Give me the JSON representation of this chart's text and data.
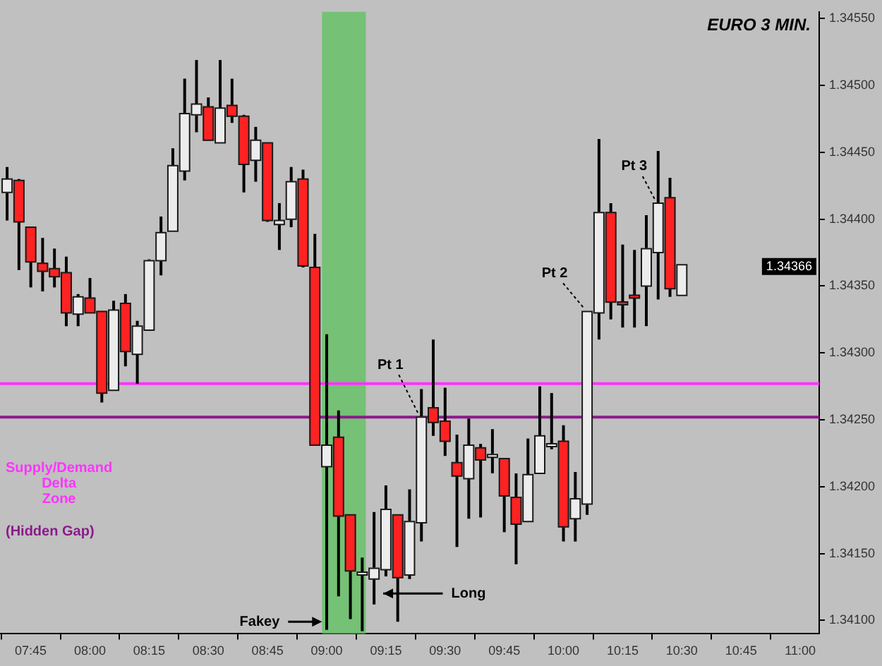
{
  "chart_data": {
    "type": "candlestick",
    "title": "EURO 3 MIN.",
    "x": [
      7.65,
      7.7,
      7.75,
      7.8,
      7.85,
      7.9,
      7.95,
      8.0,
      8.05,
      8.1,
      8.15,
      8.2,
      8.25,
      8.3,
      8.35,
      8.4,
      8.45,
      8.5,
      8.55,
      8.6,
      8.65,
      8.7,
      8.75,
      8.8,
      8.85,
      8.9,
      8.95,
      9.0,
      9.05,
      9.1,
      9.15,
      9.2,
      9.25,
      9.3,
      9.35,
      9.4,
      9.45,
      9.5,
      9.55,
      9.6,
      9.65,
      9.7,
      9.75,
      9.8,
      9.85,
      9.9,
      9.95,
      10.0,
      10.05,
      10.1,
      10.15,
      10.2,
      10.25,
      10.3,
      10.35,
      10.4,
      10.45,
      10.5
    ],
    "ohlc": [
      [
        1.3442,
        1.34439,
        1.34399,
        1.3443
      ],
      [
        1.34429,
        1.3443,
        1.34362,
        1.34398
      ],
      [
        1.34394,
        1.34394,
        1.34349,
        1.34368
      ],
      [
        1.34367,
        1.34386,
        1.34346,
        1.34361
      ],
      [
        1.34363,
        1.34378,
        1.34349,
        1.34357
      ],
      [
        1.3436,
        1.34372,
        1.3432,
        1.3433
      ],
      [
        1.34329,
        1.34344,
        1.3432,
        1.34342
      ],
      [
        1.34341,
        1.34356,
        1.3433,
        1.3433
      ],
      [
        1.34331,
        1.34331,
        1.34263,
        1.3427
      ],
      [
        1.34272,
        1.34339,
        1.34272,
        1.34332
      ],
      [
        1.34337,
        1.34344,
        1.3429,
        1.34301
      ],
      [
        1.34299,
        1.34324,
        1.34277,
        1.3432
      ],
      [
        1.34317,
        1.3437,
        1.34317,
        1.34369
      ],
      [
        1.34369,
        1.34402,
        1.34358,
        1.3439
      ],
      [
        1.34391,
        1.34453,
        1.34391,
        1.3444
      ],
      [
        1.34436,
        1.34505,
        1.34429,
        1.34479
      ],
      [
        1.34478,
        1.34519,
        1.34465,
        1.34486
      ],
      [
        1.34484,
        1.34491,
        1.34459,
        1.34459
      ],
      [
        1.34457,
        1.34519,
        1.34457,
        1.34483
      ],
      [
        1.34485,
        1.34505,
        1.34472,
        1.34477
      ],
      [
        1.34477,
        1.34478,
        1.3442,
        1.34441
      ],
      [
        1.34444,
        1.34469,
        1.34428,
        1.34459
      ],
      [
        1.34457,
        1.34457,
        1.34398,
        1.34399
      ],
      [
        1.34396,
        1.34412,
        1.34377,
        1.34399
      ],
      [
        1.344,
        1.34439,
        1.34394,
        1.34428
      ],
      [
        1.3443,
        1.34437,
        1.34364,
        1.34365
      ],
      [
        1.34364,
        1.34389,
        1.34231,
        1.34231
      ],
      [
        1.34215,
        1.34314,
        1.34093,
        1.34231
      ],
      [
        1.34237,
        1.34257,
        1.34118,
        1.34178
      ],
      [
        1.34179,
        1.34179,
        1.34101,
        1.34137
      ],
      [
        1.34134,
        1.34147,
        1.34092,
        1.34135
      ],
      [
        1.34131,
        1.34181,
        1.34112,
        1.34139
      ],
      [
        1.34138,
        1.34201,
        1.34133,
        1.34183
      ],
      [
        1.34179,
        1.34179,
        1.34099,
        1.34132
      ],
      [
        1.34134,
        1.34198,
        1.34131,
        1.34174
      ],
      [
        1.34173,
        1.34273,
        1.34159,
        1.34252
      ],
      [
        1.34259,
        1.3431,
        1.34238,
        1.34248
      ],
      [
        1.34249,
        1.34274,
        1.34223,
        1.34234
      ],
      [
        1.34218,
        1.34239,
        1.34155,
        1.34208
      ],
      [
        1.34206,
        1.34251,
        1.34176,
        1.34231
      ],
      [
        1.34229,
        1.34232,
        1.34177,
        1.3422
      ],
      [
        1.34222,
        1.34243,
        1.3421,
        1.34223
      ],
      [
        1.34221,
        1.34221,
        1.34166,
        1.34193
      ],
      [
        1.34192,
        1.3421,
        1.34142,
        1.34172
      ],
      [
        1.34174,
        1.34236,
        1.34174,
        1.34209
      ],
      [
        1.3421,
        1.34275,
        1.3421,
        1.34238
      ],
      [
        1.3423,
        1.3427,
        1.34228,
        1.34231
      ],
      [
        1.34234,
        1.34246,
        1.34159,
        1.3417
      ],
      [
        1.34176,
        1.34211,
        1.34159,
        1.34191
      ],
      [
        1.34187,
        1.34331,
        1.34179,
        1.34331
      ],
      [
        1.3433,
        1.3446,
        1.3431,
        1.34405
      ],
      [
        1.34405,
        1.34412,
        1.34325,
        1.34338
      ],
      [
        1.34338,
        1.34381,
        1.34319,
        1.34336
      ],
      [
        1.34342,
        1.34377,
        1.34319,
        1.34341
      ],
      [
        1.3435,
        1.34403,
        1.3432,
        1.34378
      ],
      [
        1.34375,
        1.34451,
        1.3434,
        1.34412
      ],
      [
        1.34416,
        1.34431,
        1.34342,
        1.34348
      ],
      [
        1.34343,
        1.34366,
        1.34343,
        1.34366
      ]
    ],
    "colors": [
      "#ececec",
      "#ff2222",
      "#ff2222",
      "#ff2222",
      "#ff2222",
      "#ff2222",
      "#ececec",
      "#ff2222",
      "#ff2222",
      "#ececec",
      "#ff2222",
      "#ececec",
      "#ececec",
      "#ececec",
      "#ececec",
      "#ececec",
      "#ececec",
      "#ff2222",
      "#ececec",
      "#ff2222",
      "#ff2222",
      "#ececec",
      "#ff2222",
      "#ececec",
      "#ececec",
      "#ff2222",
      "#ff2222",
      "#ececec",
      "#ff2222",
      "#ff2222",
      "#ececec",
      "#ececec",
      "#ececec",
      "#ff2222",
      "#ececec",
      "#ececec",
      "#ff2222",
      "#ff2222",
      "#ff2222",
      "#ececec",
      "#ff2222",
      "#ececec",
      "#ff2222",
      "#ff2222",
      "#ececec",
      "#ececec",
      "#ececec",
      "#ff2222",
      "#ececec",
      "#ececec",
      "#ececec",
      "#ff2222",
      "#ff2222",
      "#ff2222",
      "#ececec",
      "#ececec",
      "#ff2222",
      "#ececec"
    ],
    "xlim": [
      7.62,
      11.08
    ],
    "xticks": [
      {
        "value": 7.75,
        "label": "07:45"
      },
      {
        "value": 8.0,
        "label": "08:00"
      },
      {
        "value": 8.25,
        "label": "08:15"
      },
      {
        "value": 8.5,
        "label": "08:30"
      },
      {
        "value": 8.75,
        "label": "08:45"
      },
      {
        "value": 9.0,
        "label": "09:00"
      },
      {
        "value": 9.25,
        "label": "09:15"
      },
      {
        "value": 9.5,
        "label": "09:30"
      },
      {
        "value": 9.75,
        "label": "09:45"
      },
      {
        "value": 10.0,
        "label": "10:00"
      },
      {
        "value": 10.25,
        "label": "10:15"
      },
      {
        "value": 10.5,
        "label": "10:30"
      },
      {
        "value": 10.75,
        "label": "10:45"
      },
      {
        "value": 11.0,
        "label": "11:00"
      }
    ],
    "ylim": [
      1.3409,
      1.34555
    ],
    "yticks": [
      {
        "value": 1.341,
        "label": "1.34100"
      },
      {
        "value": 1.3415,
        "label": "1.34150"
      },
      {
        "value": 1.342,
        "label": "1.34200"
      },
      {
        "value": 1.3425,
        "label": "1.34250"
      },
      {
        "value": 1.343,
        "label": "1.34300"
      },
      {
        "value": 1.3435,
        "label": "1.34350"
      },
      {
        "value": 1.344,
        "label": "1.34400"
      },
      {
        "value": 1.3445,
        "label": "1.34450"
      },
      {
        "value": 1.345,
        "label": "1.34500"
      },
      {
        "value": 1.3455,
        "label": "1.34550"
      }
    ],
    "ref_lines": [
      {
        "axis": "y",
        "value": 1.34277,
        "label": "Supply/Demand Delta Zone",
        "color": "#ff33ff"
      },
      {
        "axis": "y",
        "value": 1.34252,
        "label": "(Hidden Gap)",
        "color": "#8b1a8b"
      }
    ],
    "bands": [
      {
        "axis": "x",
        "from": 8.98,
        "to": 9.165,
        "color": "#5cc25c"
      }
    ],
    "annotations": [
      {
        "text": "Pt 1",
        "x": 9.4,
        "y": 1.34252
      },
      {
        "text": "Pt 2",
        "x": 10.1,
        "y": 1.34331
      },
      {
        "text": "Pt 3",
        "x": 10.4,
        "y": 1.34412
      },
      "Long",
      {
        "text": "Fakey",
        "x": 8.98,
        "y": 1.34099
      },
      "1.34366"
    ],
    "legend": false
  }
}
